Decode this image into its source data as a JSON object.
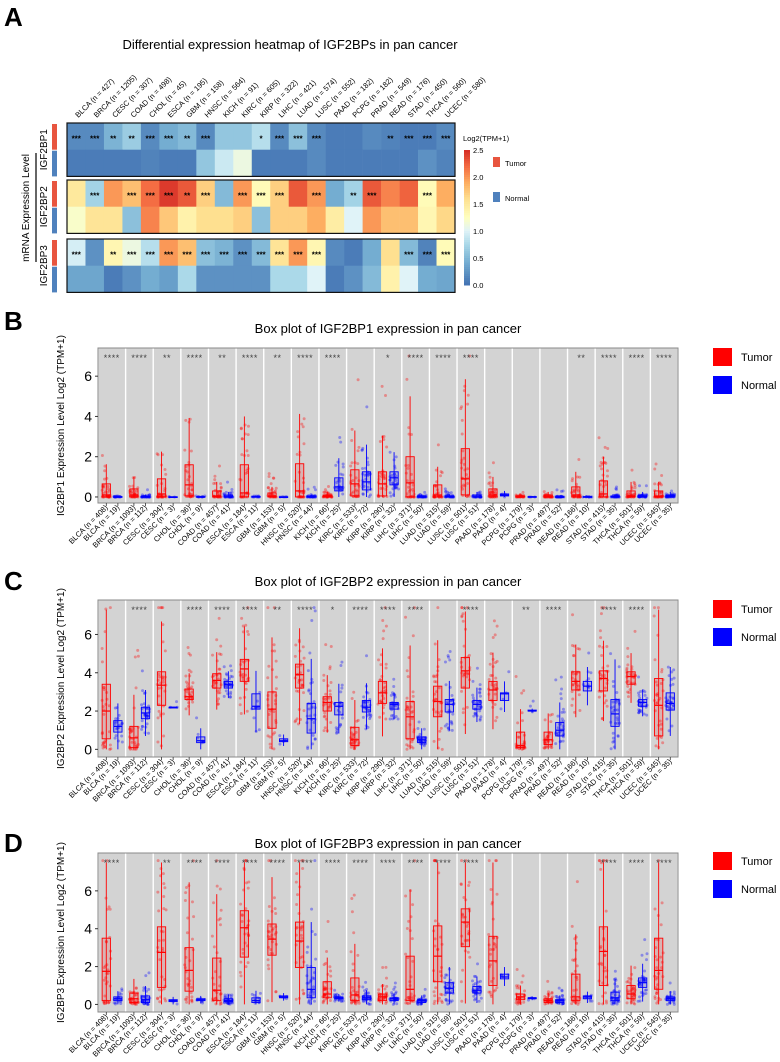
{
  "panels": {
    "a": "A",
    "b": "B",
    "c": "C",
    "d": "D"
  },
  "legend": {
    "tumor": "Tumor",
    "normal": "Normal",
    "tumor_color": "#ff0000",
    "normal_color": "#0000ff",
    "heat_tumor_color": "#e8553f",
    "heat_normal_color": "#4f81bd"
  },
  "chart_data": [
    {
      "type": "heatmap",
      "title": "Differential expression heatmap of IGF2BPs in pan cancer",
      "ylabel": "mRNA Expression Level",
      "colorbar_label": "Log2(TPM+1)",
      "colorbar_ticks": [
        "2.5",
        "2.0",
        "1.5",
        "1.0",
        "0.5",
        "0.0"
      ],
      "clim": [
        0,
        2.5
      ],
      "columns": [
        "BLCA (n = 427)",
        "BRCA (n = 1205)",
        "CESC (n = 307)",
        "COAD (n = 498)",
        "CHOL (n = 45)",
        "ESCA (n = 195)",
        "GBM (n = 158)",
        "HNSC (n = 564)",
        "KICH (n = 91)",
        "KIRC (n = 605)",
        "KIRP (n = 322)",
        "LIHC (n = 421)",
        "LUAD (n = 574)",
        "LUSC (n = 552)",
        "PAAD (n = 182)",
        "PCPG (n = 182)",
        "PRAD (n = 549)",
        "READ (n = 176)",
        "STAD (n = 450)",
        "THCA (n = 560)",
        "UCEC (n = 580)"
      ],
      "genes": [
        "IGF2BP1",
        "IGF2BP2",
        "IGF2BP3"
      ],
      "tumor": [
        [
          0.15,
          0.15,
          0.45,
          0.65,
          0.15,
          0.4,
          0.5,
          0.15,
          0.6,
          0.6,
          0.8,
          0.15,
          0.55,
          0.15,
          0.05,
          0.05,
          0.15,
          0.1,
          0.05,
          0.05,
          0.15
        ],
        [
          1.5,
          0.7,
          2.0,
          1.8,
          2.2,
          2.45,
          2.3,
          1.7,
          0.5,
          2.0,
          1.3,
          1.7,
          2.3,
          2.0,
          0.4,
          0.7,
          2.3,
          2.1,
          2.25,
          1.3,
          1.9
        ],
        [
          0.95,
          0.2,
          1.35,
          1.1,
          0.8,
          2.0,
          1.8,
          0.55,
          0.45,
          0.2,
          0.5,
          1.55,
          2.0,
          1.35,
          0.15,
          0.05,
          0.4,
          1.6,
          0.5,
          0.1,
          1.3
        ]
      ],
      "normal": [
        [
          0.05,
          0.05,
          0.05,
          0.05,
          0.1,
          0.05,
          0.05,
          0.6,
          0.9,
          1.1,
          0.05,
          0.05,
          0.05,
          0.15,
          0.05,
          0.05,
          0.05,
          0.05,
          0.05,
          0.2,
          0.1
        ],
        [
          1.2,
          1.55,
          1.55,
          0.55,
          2.1,
          1.75,
          1.4,
          1.6,
          1.6,
          1.7,
          0.55,
          1.7,
          1.7,
          1.9,
          1.45,
          1.0,
          2.0,
          1.8,
          1.8,
          1.35,
          1.65
        ],
        [
          0.35,
          0.35,
          0.05,
          0.2,
          0.4,
          0.3,
          0.75,
          0.2,
          0.2,
          0.2,
          0.2,
          0.75,
          0.75,
          1.0,
          0.05,
          0.2,
          0.5,
          1.4,
          1.0,
          0.4,
          0.35
        ]
      ],
      "significance": [
        [
          "***",
          "***",
          "**",
          "**",
          "***",
          "***",
          "**",
          "***",
          "",
          "",
          "*",
          "***",
          "***",
          "***",
          "",
          "",
          "",
          "**",
          "***",
          "***",
          "***"
        ],
        [
          "",
          "***",
          "",
          "***",
          "***",
          "***",
          "**",
          "***",
          "",
          "***",
          "***",
          "***",
          "",
          "***",
          "",
          "**",
          "***",
          "",
          "",
          "***",
          ""
        ],
        [
          "***",
          "",
          "**",
          "***",
          "***",
          "***",
          "***",
          "***",
          "***",
          "***",
          "***",
          "***",
          "***",
          "***",
          "",
          "",
          "",
          "",
          "***",
          "***",
          "***"
        ]
      ]
    },
    {
      "type": "box",
      "title": "Box plot of IGF2BP1 expression in pan cancer",
      "ylabel": "IG2BP1 Expression Level Log2 (TPM+1)",
      "yticks": [
        "0",
        "2",
        "4",
        "6"
      ],
      "ylim": [
        -0.3,
        7.4
      ],
      "categories": [
        "BLCA",
        "BRCA",
        "CESC",
        "CHOL",
        "COAD",
        "ESCA",
        "GBM",
        "HNSC",
        "KICH",
        "KIRC",
        "KIRP",
        "LIHC",
        "LUAD",
        "LUSC",
        "PAAD",
        "PCPG",
        "PRAD",
        "READ",
        "STAD",
        "THCA",
        "UCEC"
      ],
      "tumor_labels": [
        "BLCA (n = 408)",
        "BRCA (n = 1093)",
        "CESC (n = 304)",
        "CHOL (n = 36)",
        "COAD (n = 457)",
        "ESCA (n = 184)",
        "GBM (n = 153)",
        "HNSC (n = 520)",
        "KICH (n = 66)",
        "KIRC (n = 533)",
        "KIRP (n = 290)",
        "LIHC (n = 371)",
        "LUAD (n = 515)",
        "LUSC (n = 501)",
        "PAAD (n = 178)",
        "PCPG (n = 179)",
        "PRAD (n = 497)",
        "READ (n = 166)",
        "STAD (n = 415)",
        "THCA (n = 501)",
        "UCEC (n = 545)"
      ],
      "normal_labels": [
        "BLCA (n = 19)",
        "BRCA (n = 112)",
        "CESC (n = 3)",
        "CHOL (n = 9)",
        "COAD (n = 41)",
        "ESCA (n = 11)",
        "GBM (n = 5)",
        "HNSC (n = 44)",
        "KICH (n = 25)",
        "KIRC (n = 72)",
        "KIRP (n = 32)",
        "LIHC (n = 50)",
        "LUAD (n = 59)",
        "LUSC (n = 51)",
        "PAAD (n = 4)",
        "PCPG (n = 3)",
        "PRAD (n = 52)",
        "READ (n = 10)",
        "STAD (n = 35)",
        "THCA (n = 59)",
        "UCEC (n = 35)"
      ],
      "significance": [
        "****",
        "****",
        "**",
        "****",
        "**",
        "****",
        "**",
        "****",
        "****",
        "",
        "*",
        "****",
        "****",
        "****",
        "",
        "",
        "",
        "**",
        "****",
        "****",
        "****"
      ],
      "tumor_q1_median_q3": [
        [
          0,
          0.1,
          0.65
        ],
        [
          0,
          0.1,
          0.4
        ],
        [
          0,
          0.15,
          0.9
        ],
        [
          0.05,
          0.6,
          1.6
        ],
        [
          0,
          0.05,
          0.3
        ],
        [
          0,
          0.2,
          1.6
        ],
        [
          0,
          0.05,
          0.2
        ],
        [
          0,
          0.3,
          1.65
        ],
        [
          0,
          0.05,
          0.1
        ],
        [
          0.05,
          0.65,
          1.35
        ],
        [
          0.05,
          0.65,
          1.25
        ],
        [
          0,
          0.7,
          2.0
        ],
        [
          0,
          0.1,
          0.6
        ],
        [
          0.1,
          0.9,
          2.4
        ],
        [
          0,
          0.1,
          0.4
        ],
        [
          0,
          0.02,
          0.05
        ],
        [
          0,
          0,
          0.1
        ],
        [
          0,
          0.1,
          0.5
        ],
        [
          0,
          0.15,
          0.8
        ],
        [
          0,
          0.05,
          0.3
        ],
        [
          0,
          0.05,
          0.3
        ]
      ],
      "normal_q1_median_q3": [
        [
          0,
          0,
          0.02
        ],
        [
          0,
          0,
          0.05
        ],
        [
          0,
          0,
          0.01
        ],
        [
          0,
          0,
          0.02
        ],
        [
          0,
          0,
          0.1
        ],
        [
          0,
          0,
          0.03
        ],
        [
          0,
          0,
          0.01
        ],
        [
          0,
          0,
          0.05
        ],
        [
          0.3,
          0.5,
          0.95
        ],
        [
          0.35,
          0.75,
          1.25
        ],
        [
          0.6,
          0.95,
          1.25
        ],
        [
          0,
          0,
          0.05
        ],
        [
          0,
          0,
          0.05
        ],
        [
          0,
          0,
          0.1
        ],
        [
          0.05,
          0.1,
          0.15
        ],
        [
          0,
          0,
          0.02
        ],
        [
          0,
          0,
          0.02
        ],
        [
          0,
          0,
          0.02
        ],
        [
          0,
          0,
          0.05
        ],
        [
          0,
          0.02,
          0.1
        ],
        [
          0,
          0.05,
          0.1
        ]
      ]
    },
    {
      "type": "box",
      "title": "Box plot of IGF2BP2 expression in pan cancer",
      "ylabel": "IG2BP2 Expression Level Log2 (TPM+1)",
      "yticks": [
        "0",
        "2",
        "4",
        "6"
      ],
      "ylim": [
        -0.4,
        7.8
      ],
      "categories": [
        "BLCA",
        "BRCA",
        "CESC",
        "CHOL",
        "COAD",
        "ESCA",
        "GBM",
        "HNSC",
        "KICH",
        "KIRC",
        "KIRP",
        "LIHC",
        "LUAD",
        "LUSC",
        "PAAD",
        "PCPG",
        "PRAD",
        "READ",
        "STAD",
        "THCA",
        "UCEC"
      ],
      "tumor_labels": [
        "BLCA (n = 408)",
        "BRCA (n = 1093)",
        "CESC (n = 304)",
        "CHOL (n = 36)",
        "COAD (n = 457)",
        "ESCA (n = 184)",
        "GBM (n = 153)",
        "HNSC (n = 520)",
        "KICH (n = 66)",
        "KIRC (n = 533)",
        "KIRP (n = 290)",
        "LIHC (n = 371)",
        "LUAD (n = 515)",
        "LUSC (n = 501)",
        "PAAD (n = 178)",
        "PCPG (n = 179)",
        "PRAD (n = 497)",
        "READ (n = 166)",
        "STAD (n = 415)",
        "THCA (n = 501)",
        "UCEC (n = 545)"
      ],
      "normal_labels": [
        "BLCA (n = 19)",
        "BRCA (n = 112)",
        "CESC (n = 3)",
        "CHOL (n = 9)",
        "COAD (n = 41)",
        "ESCA (n = 11)",
        "GBM (n = 5)",
        "HNSC (n = 44)",
        "KICH (n = 25)",
        "KIRC (n = 72)",
        "KIRP (n = 32)",
        "LIHC (n = 50)",
        "LUAD (n = 59)",
        "LUSC (n = 51)",
        "PAAD (n = 4)",
        "PCPG (n = 3)",
        "PRAD (n = 52)",
        "READ (n = 10)",
        "STAD (n = 35)",
        "THCA (n = 59)",
        "UCEC (n = 35)"
      ],
      "significance": [
        "",
        "****",
        "",
        "****",
        "****",
        "****",
        "**",
        "****",
        "*",
        "****",
        "****",
        "****",
        "",
        "****",
        "",
        "**",
        "****",
        "",
        "****",
        "****",
        ""
      ],
      "tumor_q1_median_q3": [
        [
          0.55,
          2.0,
          3.4
        ],
        [
          0.1,
          0.6,
          1.2
        ],
        [
          2.3,
          3.35,
          4.05
        ],
        [
          2.6,
          2.75,
          3.15
        ],
        [
          3.2,
          3.6,
          3.95
        ],
        [
          3.55,
          4.2,
          4.7
        ],
        [
          1.1,
          2.1,
          3.0
        ],
        [
          3.2,
          3.9,
          4.45
        ],
        [
          2.0,
          2.45,
          2.75
        ],
        [
          0.2,
          0.5,
          1.15
        ],
        [
          2.4,
          2.95,
          3.55
        ],
        [
          0.55,
          1.7,
          2.5
        ],
        [
          1.7,
          2.5,
          3.3
        ],
        [
          3.2,
          4.1,
          4.8
        ],
        [
          2.55,
          3.1,
          3.55
        ],
        [
          0.1,
          0.2,
          0.9
        ],
        [
          0.25,
          0.5,
          0.9
        ],
        [
          3.1,
          3.55,
          4.05
        ],
        [
          3.05,
          3.7,
          4.1
        ],
        [
          3.4,
          3.8,
          4.05
        ],
        [
          0.7,
          2.3,
          3.7
        ]
      ],
      "normal_q1_median_q3": [
        [
          0.9,
          1.2,
          1.5
        ],
        [
          1.6,
          1.9,
          2.2
        ],
        [
          2.2,
          2.2,
          2.2
        ],
        [
          0.35,
          0.45,
          0.65
        ],
        [
          3.2,
          3.4,
          3.55
        ],
        [
          2.1,
          2.25,
          2.9
        ],
        [
          0.4,
          0.45,
          0.55
        ],
        [
          0.85,
          1.6,
          2.4
        ],
        [
          1.8,
          2.25,
          2.45
        ],
        [
          1.95,
          2.2,
          2.55
        ],
        [
          2.1,
          2.35,
          2.45
        ],
        [
          0.35,
          0.5,
          0.65
        ],
        [
          1.95,
          2.35,
          2.6
        ],
        [
          2.1,
          2.35,
          2.55
        ],
        [
          2.55,
          2.9,
          2.95
        ],
        [
          2.0,
          2.0,
          2.05
        ],
        [
          0.7,
          1.0,
          1.4
        ],
        [
          3.05,
          3.3,
          3.55
        ],
        [
          1.2,
          1.85,
          2.6
        ],
        [
          2.25,
          2.45,
          2.6
        ],
        [
          2.05,
          2.4,
          2.95
        ]
      ]
    },
    {
      "type": "box",
      "title": "Box plot of IGF2BP3 expression in pan cancer",
      "ylabel": "IG2BP3 Expression Level Log2 (TPM+1)",
      "yticks": [
        "0",
        "2",
        "4",
        "6"
      ],
      "ylim": [
        -0.4,
        8.0
      ],
      "categories": [
        "BLCA",
        "BRCA",
        "CESC",
        "CHOL",
        "COAD",
        "ESCA",
        "GBM",
        "HNSC",
        "KICH",
        "KIRC",
        "KIRP",
        "LIHC",
        "LUAD",
        "LUSC",
        "PAAD",
        "PCPG",
        "PRAD",
        "READ",
        "STAD",
        "THCA",
        "UCEC"
      ],
      "tumor_labels": [
        "BLCA (n = 408)",
        "BRCA (n = 1093)",
        "CESC (n = 304)",
        "CHOL (n = 36)",
        "COAD (n = 457)",
        "ESCA (n = 184)",
        "GBM (n = 153)",
        "HNSC (n = 520)",
        "KICH (n = 66)",
        "KIRC (n = 533)",
        "KIRP (n = 290)",
        "LIHC (n = 371)",
        "LUAD (n = 515)",
        "LUSC (n = 501)",
        "PAAD (n = 178)",
        "PCPG (n = 179)",
        "PRAD (n = 497)",
        "READ (n = 166)",
        "STAD (n = 415)",
        "THCA (n = 501)",
        "UCEC (n = 545)"
      ],
      "normal_labels": [
        "BLCA (n = 19)",
        "BRCA (n = 112)",
        "CESC (n = 3)",
        "CHOL (n = 9)",
        "COAD (n = 41)",
        "ESCA (n = 11)",
        "GBM (n = 5)",
        "HNSC (n = 44)",
        "KICH (n = 25)",
        "KIRC (n = 72)",
        "KIRP (n = 32)",
        "LIHC (n = 50)",
        "LUAD (n = 59)",
        "LUSC (n = 51)",
        "PAAD (n = 4)",
        "PCPG (n = 3)",
        "PRAD (n = 52)",
        "READ (n = 10)",
        "STAD (n = 35)",
        "THCA (n = 59)",
        "UCEC (n = 35)"
      ],
      "significance": [
        "****",
        "",
        "**",
        "****",
        "****",
        "****",
        "****",
        "****",
        "****",
        "****",
        "****",
        "****",
        "****",
        "****",
        "",
        "",
        "",
        "",
        "****",
        "****",
        "****"
      ],
      "tumor_q1_median_q3": [
        [
          0.2,
          1.75,
          3.5
        ],
        [
          0.1,
          0.3,
          0.6
        ],
        [
          0.9,
          2.75,
          4.1
        ],
        [
          0.7,
          1.8,
          3.0
        ],
        [
          0.2,
          0.75,
          2.45
        ],
        [
          2.5,
          4.05,
          4.95
        ],
        [
          2.6,
          3.45,
          4.25
        ],
        [
          1.95,
          3.35,
          4.35
        ],
        [
          0.35,
          0.55,
          1.2
        ],
        [
          0.2,
          0.5,
          1.4
        ],
        [
          0.2,
          0.4,
          0.55
        ],
        [
          0.2,
          0.8,
          2.55
        ],
        [
          1.2,
          2.55,
          4.15
        ],
        [
          3.05,
          4.35,
          5.05
        ],
        [
          1.0,
          2.3,
          3.6
        ],
        [
          0.25,
          0.4,
          0.55
        ],
        [
          0.1,
          0.2,
          0.3
        ],
        [
          0.2,
          0.4,
          1.6
        ],
        [
          1.0,
          2.8,
          4.1
        ],
        [
          0.3,
          0.55,
          1.0
        ],
        [
          0.8,
          1.8,
          3.5
        ]
      ],
      "normal_q1_median_q3": [
        [
          0.2,
          0.3,
          0.4
        ],
        [
          0.1,
          0.25,
          0.45
        ],
        [
          0.15,
          0.2,
          0.25
        ],
        [
          0.2,
          0.25,
          0.3
        ],
        [
          0.15,
          0.2,
          0.3
        ],
        [
          0.1,
          0.2,
          0.35
        ],
        [
          0.35,
          0.4,
          0.45
        ],
        [
          0.35,
          0.8,
          1.95
        ],
        [
          0.3,
          0.35,
          0.4
        ],
        [
          0.25,
          0.35,
          0.45
        ],
        [
          0.2,
          0.3,
          0.35
        ],
        [
          0.1,
          0.2,
          0.25
        ],
        [
          0.6,
          0.85,
          1.15
        ],
        [
          0.6,
          0.75,
          0.95
        ],
        [
          1.35,
          1.45,
          1.6
        ],
        [
          0.3,
          0.35,
          0.35
        ],
        [
          0.1,
          0.2,
          0.25
        ],
        [
          0.3,
          0.4,
          0.45
        ],
        [
          0.2,
          0.35,
          0.65
        ],
        [
          0.9,
          1.15,
          1.4
        ],
        [
          0.2,
          0.3,
          0.4
        ]
      ]
    }
  ]
}
